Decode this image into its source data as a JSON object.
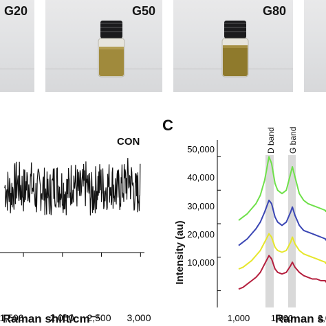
{
  "panel_top": {
    "photos": [
      {
        "label": "G20",
        "vial": false
      },
      {
        "label": "G50",
        "vial": true
      },
      {
        "label": "G80",
        "vial": true
      }
    ]
  },
  "panel_b": {
    "annotation": "CON",
    "xlabel": "Raman shift/cm⁻¹",
    "xticks": [
      "1,500",
      "2,000",
      "2,500",
      "3,000"
    ]
  },
  "panel_c": {
    "panel_letter": "C",
    "ylabel": "Intensity (au)",
    "xlabel": "Raman s",
    "band_labels": [
      "D band",
      "G band"
    ],
    "yticks": [
      "10,000",
      "20,000",
      "30,000",
      "40,000",
      "50,000"
    ],
    "xticks": [
      "1,000",
      "1,500",
      "2,0"
    ]
  },
  "chart_data": [
    {
      "type": "line",
      "title": "CON",
      "xlabel": "Raman shift/cm⁻¹",
      "ylabel": "",
      "xlim": [
        1200,
        3050
      ],
      "series": [
        {
          "color": "#111111",
          "x": [
            1260,
            1340,
            1420,
            1500,
            1580,
            1660,
            1740,
            1820,
            1900,
            1980,
            2060,
            2140,
            2220,
            2300,
            2380,
            2460,
            2540,
            2620,
            2700,
            2780,
            2860,
            2940,
            3000
          ],
          "values": [
            0.1,
            -0.4,
            0.6,
            -0.2,
            0.8,
            -0.6,
            0.3,
            -0.9,
            0.5,
            0.2,
            -0.3,
            0.9,
            -0.5,
            0.4,
            -0.8,
            0.6,
            -0.1,
            0.7,
            -0.4,
            0.3,
            1.0,
            -0.6,
            0.2
          ]
        }
      ]
    },
    {
      "type": "line",
      "title": "",
      "xlabel": "Raman s",
      "ylabel": "Intensity (au)",
      "xlim": [
        850,
        2050
      ],
      "ylim": [
        5000,
        55000
      ],
      "annotations": [
        "D band",
        "G band"
      ],
      "series": [
        {
          "color": "#6fe04a",
          "x": [
            1000,
            1050,
            1100,
            1150,
            1200,
            1250,
            1300,
            1350,
            1380,
            1420,
            1450,
            1500,
            1550,
            1600,
            1620,
            1650,
            1700,
            1750,
            1800,
            1850,
            1900,
            1950,
            2000,
            2050
          ],
          "values": [
            31000,
            32000,
            33000,
            34500,
            36000,
            38500,
            43000,
            50000,
            48000,
            42000,
            40000,
            39000,
            40000,
            45000,
            47000,
            44000,
            39000,
            37000,
            36000,
            35500,
            35000,
            34500,
            34000,
            33500
          ]
        },
        {
          "color": "#3a46b4",
          "x": [
            1000,
            1050,
            1100,
            1150,
            1200,
            1250,
            1300,
            1350,
            1380,
            1420,
            1450,
            1500,
            1550,
            1600,
            1620,
            1650,
            1700,
            1750,
            1800,
            1850,
            1900,
            1950,
            2000,
            2050
          ],
          "values": [
            23500,
            24500,
            25500,
            27000,
            28500,
            30500,
            33500,
            37000,
            36000,
            32000,
            30500,
            29500,
            30500,
            33500,
            35000,
            32500,
            29500,
            28000,
            27500,
            27000,
            26500,
            26000,
            25500,
            25000
          ]
        },
        {
          "color": "#e6e62a",
          "x": [
            1000,
            1050,
            1100,
            1150,
            1200,
            1250,
            1300,
            1350,
            1380,
            1420,
            1450,
            1500,
            1550,
            1600,
            1620,
            1650,
            1700,
            1750,
            1800,
            1850,
            1900,
            1950,
            2000,
            2050
          ],
          "values": [
            16500,
            17000,
            18000,
            19000,
            20500,
            22000,
            24500,
            27000,
            26000,
            23000,
            22000,
            21500,
            22000,
            24500,
            26000,
            24000,
            22000,
            21000,
            20500,
            20000,
            19500,
            19000,
            18500,
            18000
          ]
        },
        {
          "color": "#b51f3e",
          "x": [
            1000,
            1050,
            1100,
            1150,
            1200,
            1250,
            1300,
            1350,
            1380,
            1420,
            1450,
            1500,
            1550,
            1600,
            1620,
            1650,
            1700,
            1750,
            1800,
            1850,
            1900,
            1950,
            2000,
            2050
          ],
          "values": [
            10500,
            11000,
            12000,
            13000,
            14000,
            15500,
            18000,
            20500,
            19500,
            16500,
            15500,
            15000,
            15500,
            17500,
            18500,
            17000,
            15500,
            14500,
            14000,
            13500,
            13500,
            13000,
            13000,
            12500
          ]
        }
      ]
    }
  ]
}
